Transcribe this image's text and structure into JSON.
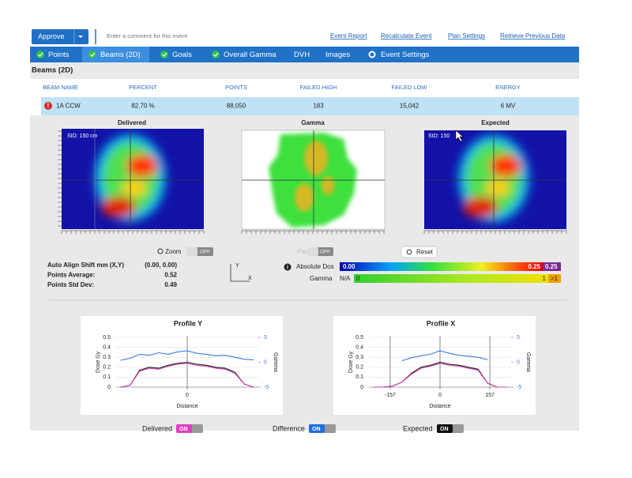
{
  "toolbar": {
    "approve": "Approve",
    "comment_placeholder": "Enter a comment for this event",
    "links": [
      "Event Report",
      "Recalculate Event",
      "Plan Settings",
      "Retrieve Previous Data"
    ]
  },
  "tabs": [
    "Points",
    "Beams (2D)",
    "Goals",
    "Overall Gamma",
    "DVH",
    "Images",
    "Event Settings"
  ],
  "section_title": "Beams (2D)",
  "table": {
    "columns": [
      "BEAM NAME",
      "PERCENT",
      "POINTS",
      "FAILED HIGH",
      "FAILED LOW",
      "ENERGY"
    ],
    "rows": [
      [
        "1A CCW",
        "82.70 %",
        "88,050",
        "183",
        "15,042",
        "6 MV"
      ]
    ]
  },
  "panels": [
    {
      "title": "Delivered",
      "sid": "SID: 150 cm"
    },
    {
      "title": "Gamma"
    },
    {
      "title": "Expected",
      "sid": "SID: 150"
    }
  ],
  "controls": {
    "zoom": "Zoom",
    "zoom_state": "OFF",
    "pan": "Pan",
    "pan_state": "OFF",
    "reset": "Reset"
  },
  "stats": [
    {
      "label": "Auto Align Shift mm (X,Y)",
      "value": "(0.00, 0.00)"
    },
    {
      "label": "Points Average:",
      "value": "0.52"
    },
    {
      "label": "Points Std Dev:",
      "value": "0.49"
    }
  ],
  "axes_icon": {
    "y": "Y",
    "x": "X"
  },
  "legend": {
    "dose_label": "Absolute Dos",
    "dose_min": "0.00",
    "dose_max": "0.25",
    "dose_over": "0.25",
    "gamma_label": "Gamma",
    "gamma_na": "N/A",
    "gamma_min": "0",
    "gamma_max": "1",
    "gamma_over": ">1"
  },
  "profiles": [
    {
      "type": "line",
      "title": "Profile Y",
      "y_label": "Dose Gy",
      "y2_label": "Gamma",
      "x_label": "Distance",
      "xlim": [
        -224,
        224
      ],
      "xticks": [
        0
      ],
      "ylim": [
        0,
        0.5
      ],
      "yticks": [
        0,
        0.1,
        0.2,
        0.3,
        0.4,
        0.5
      ],
      "y2lim": [
        -5,
        5
      ],
      "y2ticks": [
        5,
        0,
        -5
      ],
      "x": [
        -210,
        -180,
        -150,
        -120,
        -90,
        -60,
        -30,
        0,
        30,
        60,
        90,
        120,
        150,
        180,
        210
      ],
      "series": [
        {
          "color": "#222222",
          "values": [
            0,
            0.02,
            0.17,
            0.2,
            0.19,
            0.22,
            0.24,
            0.25,
            0.23,
            0.22,
            0.2,
            0.19,
            0.15,
            0.03,
            0
          ]
        },
        {
          "color": "#d63fb0",
          "values": [
            0,
            0.02,
            0.16,
            0.19,
            0.18,
            0.21,
            0.23,
            0.24,
            0.22,
            0.21,
            0.19,
            0.18,
            0.14,
            0.03,
            0
          ]
        },
        {
          "color": "#3b78e7",
          "axis": "y2",
          "values": [
            0.4,
            0.8,
            1.6,
            1.4,
            1.9,
            1.6,
            2.1,
            2.3,
            1.8,
            1.6,
            1.3,
            1.4,
            1.0,
            0.6,
            0.5
          ]
        }
      ]
    },
    {
      "type": "line",
      "title": "Profile X",
      "y_label": "Dose Gy",
      "y2_label": "Gamma",
      "x_label": "Distance",
      "xlim": [
        -224,
        224
      ],
      "xticks": [
        -157,
        0,
        157
      ],
      "ylim": [
        0,
        0.5
      ],
      "yticks": [
        0,
        0.1,
        0.2,
        0.3,
        0.4,
        0.5
      ],
      "y2lim": [
        -5,
        5
      ],
      "y2ticks": [
        5,
        0,
        -5
      ],
      "x": [
        -210,
        -180,
        -150,
        -120,
        -90,
        -60,
        -30,
        0,
        30,
        60,
        90,
        120,
        150,
        180,
        210
      ],
      "series": [
        {
          "color": "#222222",
          "values": [
            0,
            0,
            0.01,
            0.05,
            0.14,
            0.2,
            0.22,
            0.25,
            0.23,
            0.22,
            0.2,
            0.18,
            0.04,
            0,
            0
          ]
        },
        {
          "color": "#d63fb0",
          "values": [
            0,
            0,
            0.01,
            0.05,
            0.13,
            0.19,
            0.21,
            0.24,
            0.22,
            0.21,
            0.19,
            0.17,
            0.04,
            0,
            0
          ]
        },
        {
          "color": "#3b78e7",
          "axis": "y2",
          "values": [
            null,
            null,
            null,
            0.3,
            0.9,
            1.3,
            1.6,
            2.3,
            1.8,
            1.4,
            1.2,
            1.0,
            0.5,
            null,
            null
          ]
        }
      ]
    }
  ],
  "toggles": [
    {
      "label": "Delivered",
      "state": "ON"
    },
    {
      "label": "Difference",
      "state": "ON"
    },
    {
      "label": "Expected",
      "state": "ON"
    }
  ]
}
